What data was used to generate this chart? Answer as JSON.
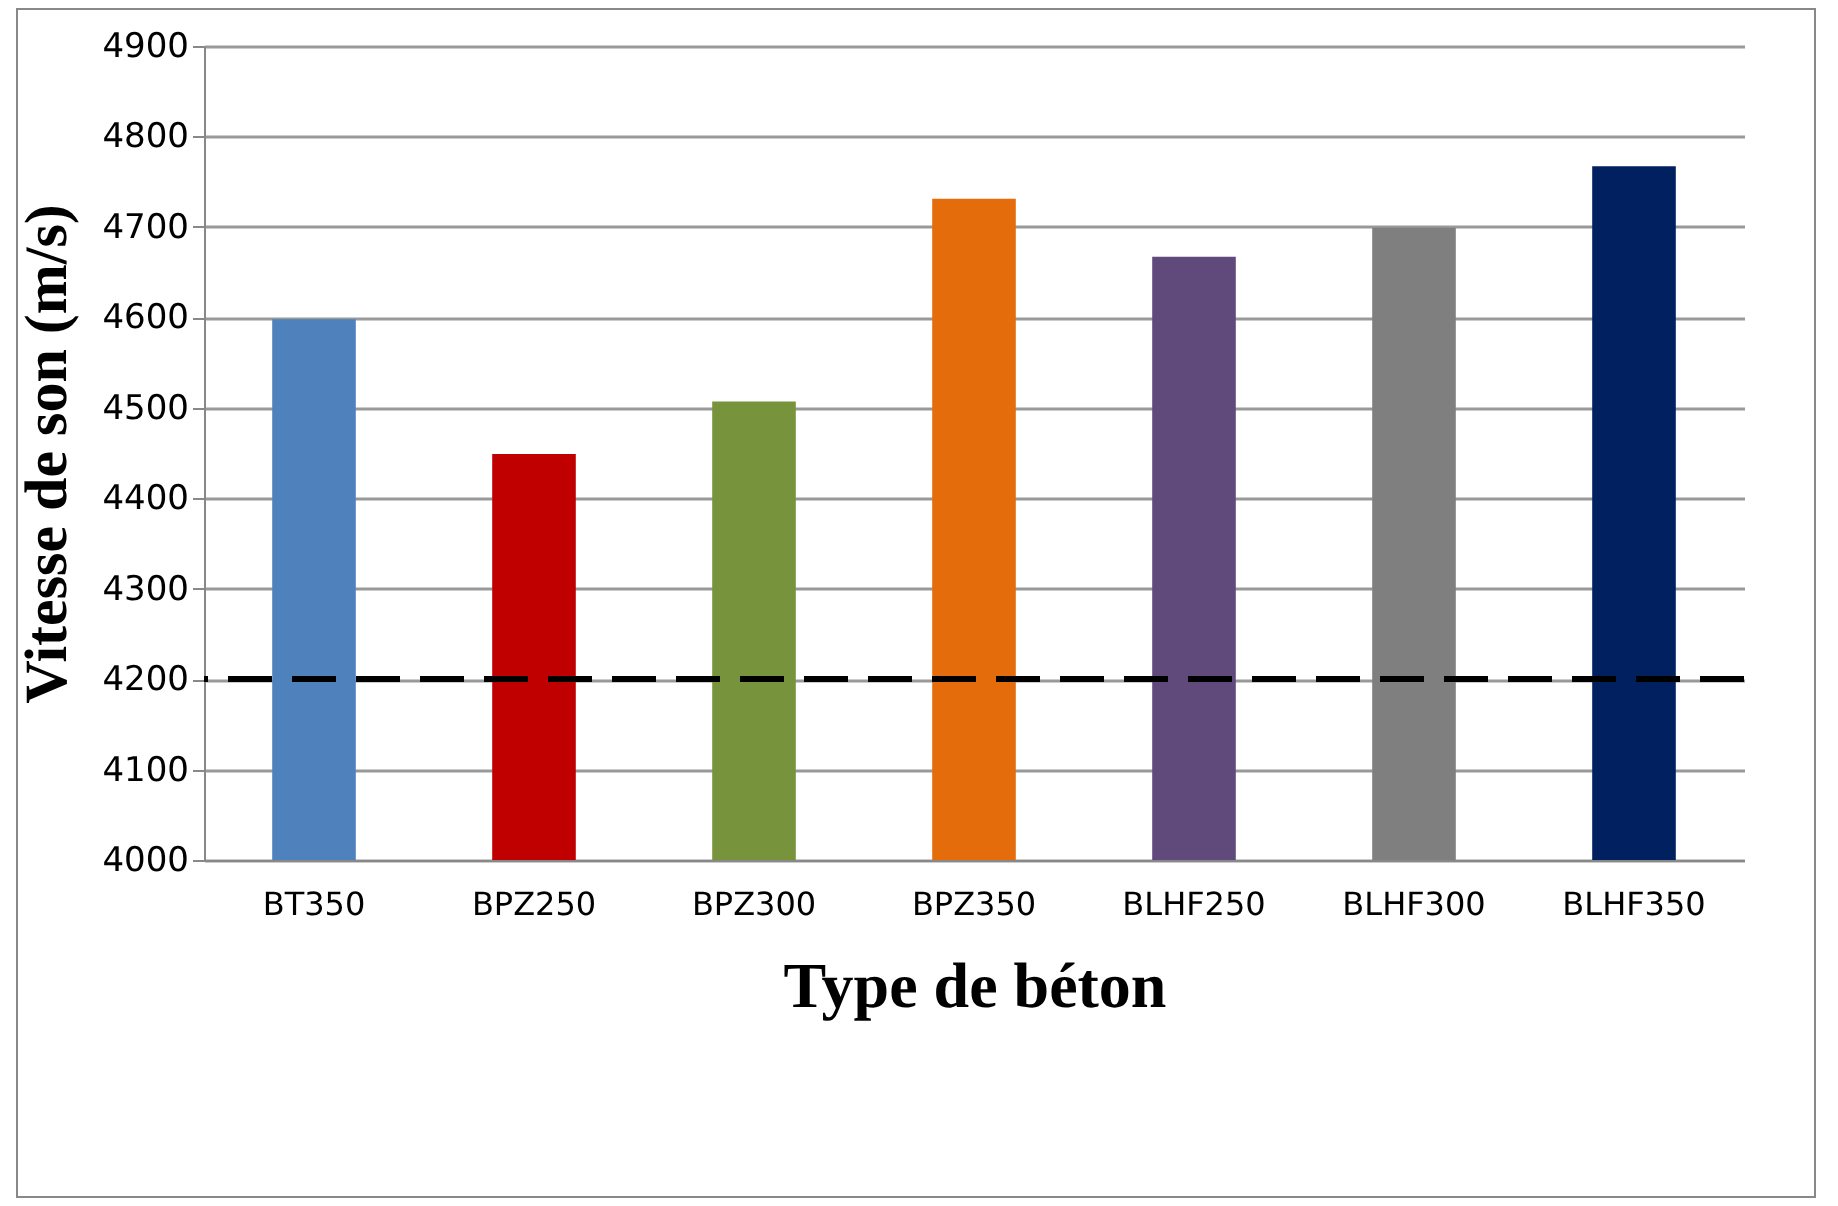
{
  "chart_data": {
    "type": "bar",
    "xlabel": "Type de béton",
    "ylabel": "Vitesse de son (m/s)",
    "categories": [
      "BT350",
      "BPZ250",
      "BPZ300",
      "BPZ350",
      "BLHF250",
      "BLHF300",
      "BLHF350"
    ],
    "values": [
      4598,
      4449,
      4507,
      4731,
      4667,
      4699,
      4767
    ],
    "colors": [
      "#4f81bd",
      "#c00000",
      "#77933c",
      "#e46c0a",
      "#604a7b",
      "#7f7f7f",
      "#002060"
    ],
    "ylim": [
      4000,
      4900
    ],
    "yticks": [
      4000,
      4100,
      4200,
      4300,
      4400,
      4500,
      4600,
      4700,
      4800,
      4900
    ],
    "grid": "y",
    "ref_lines": [
      {
        "axis": "y",
        "value": 4200,
        "color": "#000000",
        "line_style": "dashed"
      }
    ]
  }
}
